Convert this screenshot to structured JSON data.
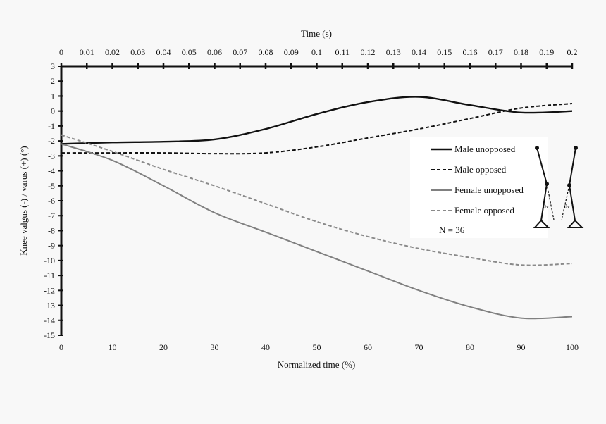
{
  "chart_data": {
    "type": "line",
    "title": "",
    "xlabel": "Normalized time (%)",
    "x2label": "Time (s)",
    "ylabel": "Knee valgus (-) / varus (+) (°)",
    "xlim": [
      0,
      100
    ],
    "x2lim": [
      0,
      0.2
    ],
    "ylim": [
      -15,
      3
    ],
    "xticks": [
      0,
      10,
      20,
      30,
      40,
      50,
      60,
      70,
      80,
      90,
      100
    ],
    "x2ticks": [
      "0",
      "0.01",
      "0.02",
      "0.03",
      "0.04",
      "0.05",
      "0.06",
      "0.07",
      "0.08",
      "0.09",
      "0.1",
      "0.11",
      "0.12",
      "0.13",
      "0.14",
      "0.15",
      "0.16",
      "0.17",
      "0.18",
      "0.19",
      "0.2"
    ],
    "yticks": [
      3,
      2,
      1,
      0,
      -1,
      -2,
      -3,
      -4,
      -5,
      -6,
      -7,
      -8,
      -9,
      -10,
      -11,
      -12,
      -13,
      -14,
      -15
    ],
    "grid": false,
    "legend_placement": "right",
    "annotation": "N = 36",
    "x": [
      0,
      10,
      20,
      30,
      40,
      50,
      60,
      70,
      80,
      90,
      100
    ],
    "series": [
      {
        "name": "Male unopposed",
        "color": "#111111",
        "style": "solid",
        "width": 2.4,
        "values": [
          -2.2,
          -2.1,
          -2.05,
          -1.9,
          -1.2,
          -0.2,
          0.6,
          0.95,
          0.4,
          -0.1,
          0.0
        ]
      },
      {
        "name": "Male opposed",
        "color": "#111111",
        "style": "dashed",
        "width": 2,
        "values": [
          -2.8,
          -2.8,
          -2.8,
          -2.85,
          -2.8,
          -2.4,
          -1.8,
          -1.2,
          -0.5,
          0.2,
          0.5
        ]
      },
      {
        "name": "Female unopposed",
        "color": "#808080",
        "style": "solid",
        "width": 2,
        "values": [
          -2.2,
          -3.3,
          -5.0,
          -6.8,
          -8.1,
          -9.4,
          -10.7,
          -12.0,
          -13.1,
          -13.85,
          -13.75
        ]
      },
      {
        "name": "Female opposed",
        "color": "#8a8a8a",
        "style": "dashed",
        "width": 2,
        "values": [
          -1.6,
          -2.7,
          -3.9,
          -5.0,
          -6.2,
          -7.4,
          -8.4,
          -9.2,
          -9.8,
          -10.3,
          -10.2
        ]
      }
    ],
    "diagram_label": "θv"
  }
}
